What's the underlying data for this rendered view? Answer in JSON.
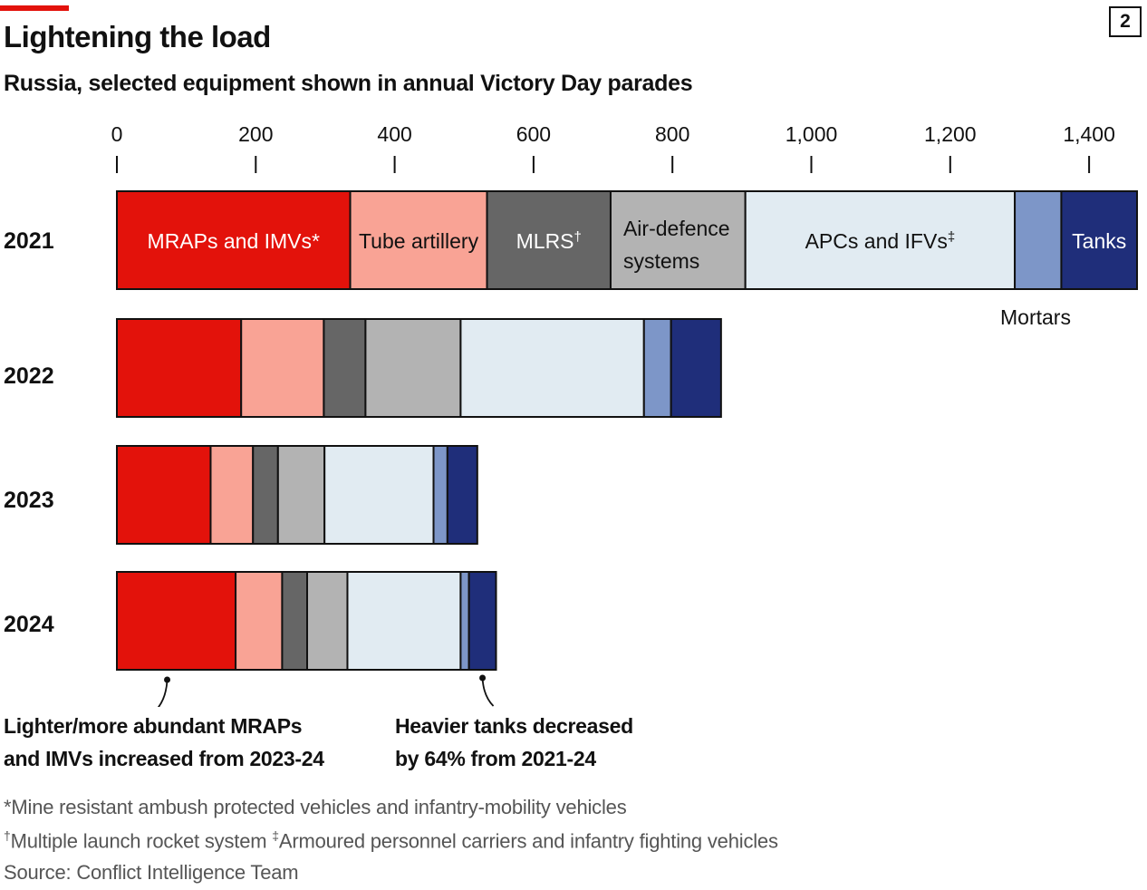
{
  "header": {
    "title": "Lightening the load",
    "subtitle": "Russia, selected equipment shown in annual Victory Day parades",
    "chart_number": "2"
  },
  "chart_data": {
    "type": "bar",
    "orientation": "horizontal",
    "stacked": true,
    "x_ticks": [
      0,
      200,
      400,
      600,
      800,
      1000,
      1200,
      1400
    ],
    "x_tick_labels": [
      "0",
      "200",
      "400",
      "600",
      "800",
      "1,000",
      "1,200",
      "1,400"
    ],
    "xlim": [
      0,
      1470
    ],
    "categories": [
      "2021",
      "2022",
      "2023",
      "2024"
    ],
    "series": [
      {
        "name": "MRAPs and IMVs",
        "label": "MRAPs and IMVs*",
        "sup": "",
        "color": "#e3120b",
        "text_color": "#ffffff",
        "values": [
          336,
          179,
          135,
          171
        ]
      },
      {
        "name": "Tube artillery",
        "label": "Tube artillery",
        "sup": "",
        "color": "#f9a395",
        "text_color": "#111111",
        "values": [
          197,
          119,
          61,
          67
        ]
      },
      {
        "name": "MLRS",
        "label": "MLRS",
        "sup": "†",
        "color": "#666666",
        "text_color": "#ffffff",
        "values": [
          178,
          60,
          36,
          36
        ]
      },
      {
        "name": "Air-defence systems",
        "label": "Air-defence|systems",
        "sup": "",
        "color": "#b3b3b3",
        "text_color": "#111111",
        "values": [
          194,
          137,
          67,
          58
        ]
      },
      {
        "name": "APCs and IFVs",
        "label": "APCs and IFVs",
        "sup": "‡",
        "color": "#e1ebf2",
        "text_color": "#111111",
        "values": [
          388,
          264,
          157,
          163
        ]
      },
      {
        "name": "Mortars",
        "label": "Mortars",
        "sup": "",
        "color": "#7d96c8",
        "text_color": "#111111",
        "values": [
          67,
          39,
          20,
          12
        ]
      },
      {
        "name": "Tanks",
        "label": "Tanks",
        "sup": "",
        "color": "#1f2e7a",
        "text_color": "#ffffff",
        "values": [
          109,
          72,
          43,
          39
        ]
      }
    ]
  },
  "annotations": {
    "left_line1": "Lighter/more abundant MRAPs",
    "left_line2": "and IMVs increased from 2023-24",
    "right_line1": "Heavier tanks decreased",
    "right_line2": "by 64% from 2021-24"
  },
  "footnotes": {
    "note1_mark": "*",
    "note1_text": "Mine resistant ambush protected vehicles and infantry-mobility vehicles",
    "note2_mark": "†",
    "note2_text": "Multiple launch rocket system ",
    "note3_mark": "‡",
    "note3_text": "Armoured personnel carriers and infantry fighting vehicles",
    "source": "Source: Conflict Intelligence Team"
  }
}
